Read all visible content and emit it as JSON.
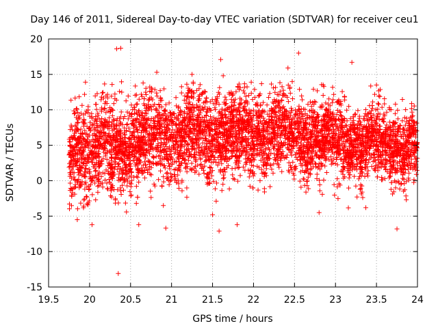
{
  "chart_data": {
    "type": "scatter",
    "title": "Day 146 of 2011, Sidereal Day-to-day VTEC variation (SDTVAR) for receiver ceu1",
    "xlabel": "GPS time / hours",
    "ylabel": "SDTVAR / TECUs",
    "xlim": [
      19.5,
      24
    ],
    "ylim": [
      -15,
      20
    ],
    "xticks": [
      "19.5",
      "20",
      "20.5",
      "21",
      "21.5",
      "22",
      "22.5",
      "23",
      "23.5",
      "24"
    ],
    "yticks": [
      "-15",
      "-10",
      "-5",
      "0",
      "5",
      "10",
      "15",
      "20"
    ],
    "grid": true,
    "marker": "+",
    "series": [
      {
        "name": "SDTVAR",
        "color": "#ff0000",
        "x_range": [
          19.75,
          24.0
        ],
        "approx_point_count": 5000,
        "y_mean_by_hour": [
          {
            "x": 19.75,
            "mean": 4.0,
            "spread": 3.4
          },
          {
            "x": 20.0,
            "mean": 4.2,
            "spread": 3.5
          },
          {
            "x": 20.5,
            "mean": 5.2,
            "spread": 3.3
          },
          {
            "x": 21.0,
            "mean": 6.2,
            "spread": 3.0
          },
          {
            "x": 21.5,
            "mean": 6.4,
            "spread": 3.0
          },
          {
            "x": 22.0,
            "mean": 6.6,
            "spread": 2.9
          },
          {
            "x": 22.5,
            "mean": 6.3,
            "spread": 2.7
          },
          {
            "x": 23.0,
            "mean": 5.8,
            "spread": 2.6
          },
          {
            "x": 23.5,
            "mean": 5.2,
            "spread": 2.4
          },
          {
            "x": 24.0,
            "mean": 4.8,
            "spread": 2.3
          }
        ],
        "outliers": [
          {
            "x": 20.33,
            "y": 18.6
          },
          {
            "x": 20.38,
            "y": 18.7
          },
          {
            "x": 22.55,
            "y": 18.0
          },
          {
            "x": 21.6,
            "y": 17.1
          },
          {
            "x": 23.2,
            "y": 16.7
          },
          {
            "x": 22.42,
            "y": 15.9
          },
          {
            "x": 20.82,
            "y": 15.3
          },
          {
            "x": 21.25,
            "y": 15.0
          },
          {
            "x": 21.63,
            "y": 14.8
          },
          {
            "x": 19.95,
            "y": 13.9
          },
          {
            "x": 22.85,
            "y": 13.5
          },
          {
            "x": 23.5,
            "y": 13.5
          },
          {
            "x": 20.35,
            "y": -13.1
          },
          {
            "x": 21.58,
            "y": -7.1
          },
          {
            "x": 20.93,
            "y": -6.7
          },
          {
            "x": 20.6,
            "y": -6.2
          },
          {
            "x": 20.03,
            "y": -6.2
          },
          {
            "x": 21.8,
            "y": -6.2
          },
          {
            "x": 23.75,
            "y": -6.8
          },
          {
            "x": 19.85,
            "y": -5.5
          },
          {
            "x": 21.5,
            "y": -4.8
          },
          {
            "x": 22.8,
            "y": -4.5
          },
          {
            "x": 20.45,
            "y": -4.4
          },
          {
            "x": 23.37,
            "y": -3.8
          },
          {
            "x": 20.9,
            "y": -3.5
          }
        ]
      }
    ]
  }
}
